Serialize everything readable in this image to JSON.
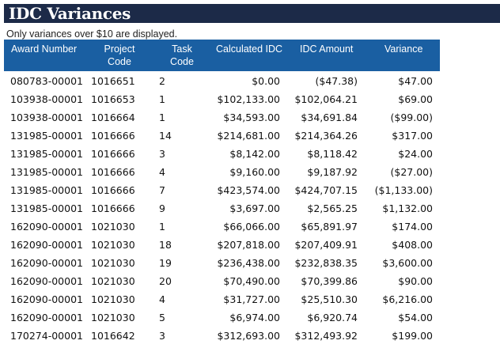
{
  "report": {
    "title": "IDC Variances",
    "note": "Only variances over $10 are displayed."
  },
  "table": {
    "headers": {
      "award_number": "Award Number",
      "project_code_1": "Project",
      "project_code_2": "Code",
      "task_code_1": "Task",
      "task_code_2": "Code",
      "calculated_idc": "Calculated IDC",
      "idc_amount": "IDC Amount",
      "variance": "Variance"
    },
    "rows": [
      [
        "080783-00001",
        "1016651",
        "2",
        "$0.00",
        "($47.38)",
        "$47.00"
      ],
      [
        "103938-00001",
        "1016653",
        "1",
        "$102,133.00",
        "$102,064.21",
        "$69.00"
      ],
      [
        "103938-00001",
        "1016664",
        "1",
        "$34,593.00",
        "$34,691.84",
        "($99.00)"
      ],
      [
        "131985-00001",
        "1016666",
        "14",
        "$214,681.00",
        "$214,364.26",
        "$317.00"
      ],
      [
        "131985-00001",
        "1016666",
        "3",
        "$8,142.00",
        "$8,118.42",
        "$24.00"
      ],
      [
        "131985-00001",
        "1016666",
        "4",
        "$9,160.00",
        "$9,187.92",
        "($27.00)"
      ],
      [
        "131985-00001",
        "1016666",
        "7",
        "$423,574.00",
        "$424,707.15",
        "($1,133.00)"
      ],
      [
        "131985-00001",
        "1016666",
        "9",
        "$3,697.00",
        "$2,565.25",
        "$1,132.00"
      ],
      [
        "162090-00001",
        "1021030",
        "1",
        "$66,066.00",
        "$65,891.97",
        "$174.00"
      ],
      [
        "162090-00001",
        "1021030",
        "18",
        "$207,818.00",
        "$207,409.91",
        "$408.00"
      ],
      [
        "162090-00001",
        "1021030",
        "19",
        "$236,438.00",
        "$232,838.35",
        "$3,600.00"
      ],
      [
        "162090-00001",
        "1021030",
        "20",
        "$70,490.00",
        "$70,399.86",
        "$90.00"
      ],
      [
        "162090-00001",
        "1021030",
        "4",
        "$31,727.00",
        "$25,510.30",
        "$6,216.00"
      ],
      [
        "162090-00001",
        "1021030",
        "5",
        "$6,974.00",
        "$6,920.74",
        "$54.00"
      ],
      [
        "170274-00001",
        "1016642",
        "3",
        "$312,693.00",
        "$312,493.92",
        "$199.00"
      ]
    ]
  },
  "colors": {
    "title_bar": "#1c2a48",
    "header_bg": "#1a5fa2"
  }
}
